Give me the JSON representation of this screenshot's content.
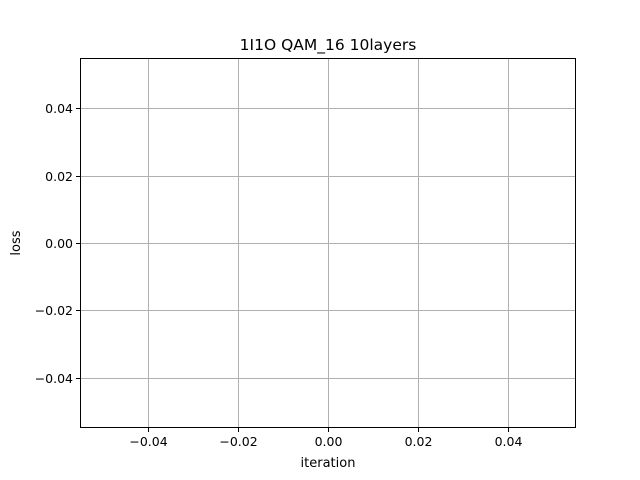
{
  "chart_data": {
    "type": "line",
    "title": "1I1O QAM_16 10layers",
    "xlabel": "iteration",
    "ylabel": "loss",
    "xlim": [
      -0.055,
      0.055
    ],
    "ylim": [
      -0.055,
      0.055
    ],
    "x_ticks": [
      -0.04,
      -0.02,
      0.0,
      0.02,
      0.04
    ],
    "y_ticks": [
      -0.04,
      -0.02,
      0.0,
      0.02,
      0.04
    ],
    "x_tick_labels": [
      "−0.04",
      "−0.02",
      "0.00",
      "0.02",
      "0.04"
    ],
    "y_tick_labels": [
      "−0.04",
      "−0.02",
      "0.00",
      "0.02",
      "0.04"
    ],
    "grid": true,
    "series": [
      {
        "x": [],
        "values": []
      }
    ]
  }
}
